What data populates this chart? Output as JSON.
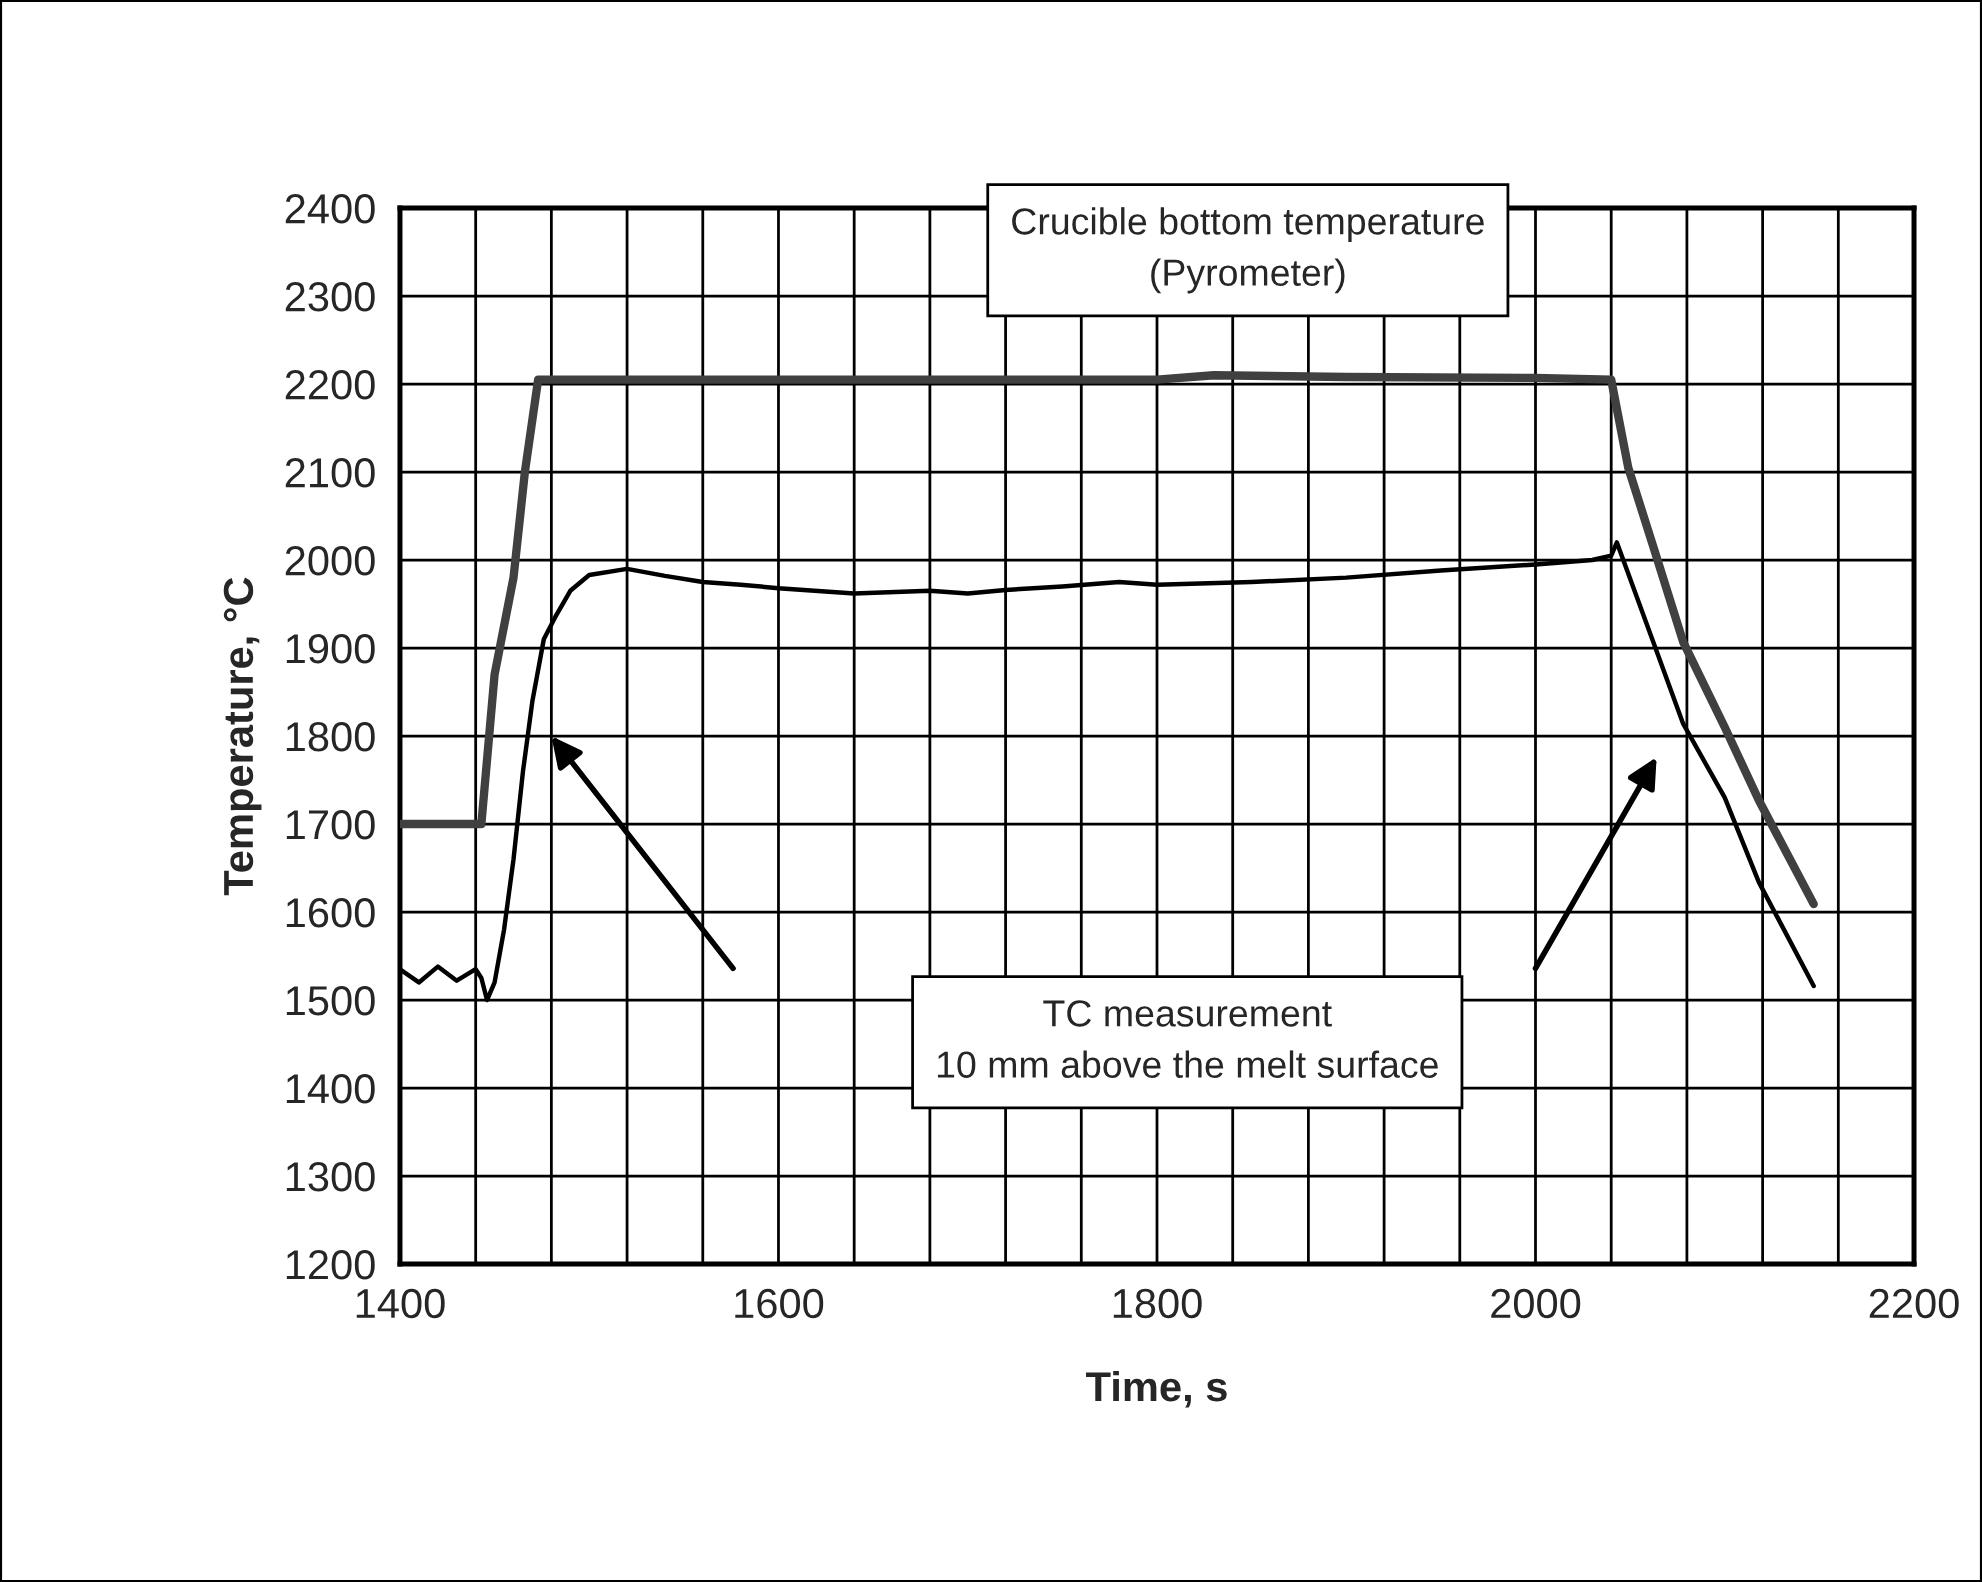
{
  "chart_data": {
    "type": "line",
    "xlabel": "Time, s",
    "ylabel": "Temperature, °C",
    "xlim": [
      1400,
      2200
    ],
    "ylim": [
      1200,
      2400
    ],
    "xticks": [
      1400,
      {
        "value": 1440,
        "label": null
      },
      {
        "value": 1480,
        "label": null
      },
      {
        "value": 1520,
        "label": null
      },
      {
        "value": 1560,
        "label": null
      },
      1600,
      {
        "value": 1640,
        "label": null
      },
      {
        "value": 1680,
        "label": null
      },
      {
        "value": 1720,
        "label": null
      },
      {
        "value": 1760,
        "label": null
      },
      1800,
      {
        "value": 1840,
        "label": null
      },
      {
        "value": 1880,
        "label": null
      },
      {
        "value": 1920,
        "label": null
      },
      {
        "value": 1960,
        "label": null
      },
      2000,
      {
        "value": 2040,
        "label": null
      },
      {
        "value": 2080,
        "label": null
      },
      {
        "value": 2120,
        "label": null
      },
      {
        "value": 2160,
        "label": null
      },
      2200
    ],
    "yticks": [
      1200,
      1300,
      1400,
      1500,
      1600,
      1700,
      1800,
      1900,
      2000,
      2100,
      2200,
      2300,
      2400
    ],
    "grid": true,
    "legend": false,
    "marker": "none",
    "line_style": "solid",
    "series": [
      {
        "color": "#404040",
        "x": [
          1400,
          1443,
          1450,
          1460,
          1466,
          1473,
          1600,
          1800,
          1830,
          1900,
          2000,
          2040,
          2049,
          2063,
          2078,
          2100,
          2118,
          2147
        ],
        "values": [
          1700,
          1700,
          1870,
          1980,
          2100,
          2205,
          2205,
          2205,
          2210,
          2208,
          2207,
          2205,
          2105,
          2010,
          1907,
          1810,
          1727,
          1609
        ]
      },
      {
        "color": "#000000",
        "x": [
          1400,
          1410,
          1420,
          1430,
          1440,
          1443,
          1446,
          1450,
          1455,
          1460,
          1465,
          1470,
          1476,
          1482,
          1490,
          1500,
          1520,
          1540,
          1560,
          1580,
          1600,
          1640,
          1680,
          1700,
          1720,
          1750,
          1780,
          1800,
          1850,
          1900,
          1950,
          2000,
          2030,
          2040,
          2043,
          2060,
          2078,
          2100,
          2118,
          2147
        ],
        "values": [
          1535,
          1520,
          1538,
          1522,
          1535,
          1525,
          1500,
          1520,
          1580,
          1660,
          1760,
          1840,
          1910,
          1935,
          1965,
          1983,
          1990,
          1982,
          1975,
          1972,
          1968,
          1962,
          1965,
          1962,
          1966,
          1970,
          1975,
          1972,
          1975,
          1980,
          1988,
          1995,
          2000,
          2005,
          2020,
          1920,
          1814,
          1730,
          1634,
          1516
        ]
      }
    ],
    "annotations": [
      "Crucible bottom temperature\n(Pyrometer)",
      "TC measurement\n10 mm above the melt surface"
    ]
  }
}
